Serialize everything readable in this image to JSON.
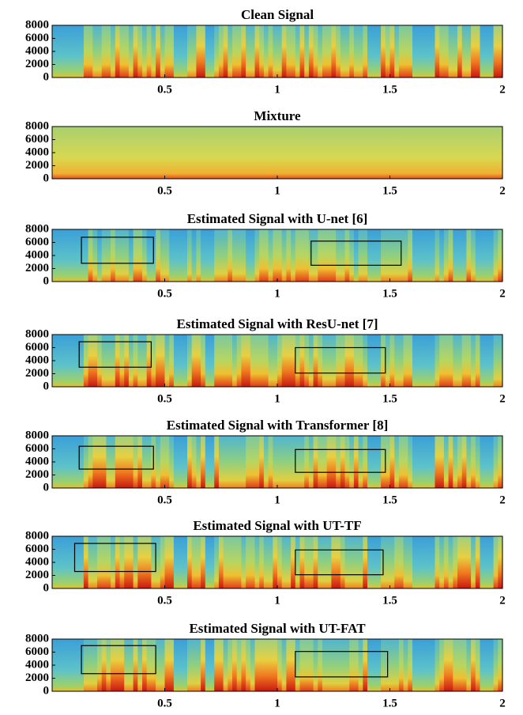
{
  "chart_data": [
    {
      "type": "spectrogram",
      "title": "Clean Signal",
      "xlim": [
        0,
        2
      ],
      "ylim": [
        0,
        8000
      ],
      "xticks": [
        0.5,
        1,
        1.5,
        2
      ],
      "yticks": [
        0,
        2000,
        4000,
        6000,
        8000
      ],
      "boxes": []
    },
    {
      "type": "spectrogram",
      "title": "Mixture",
      "xlim": [
        0,
        2
      ],
      "ylim": [
        0,
        8000
      ],
      "xticks": [
        0.5,
        1,
        1.5,
        2
      ],
      "yticks": [
        0,
        2000,
        4000,
        6000,
        8000
      ],
      "boxes": []
    },
    {
      "type": "spectrogram",
      "title": "Estimated Signal with U-net [6]",
      "xlim": [
        0,
        2
      ],
      "ylim": [
        0,
        8000
      ],
      "xticks": [
        0.5,
        1,
        1.5,
        2
      ],
      "yticks": [
        0,
        2000,
        4000,
        6000,
        8000
      ],
      "boxes": [
        {
          "x": [
            0.13,
            0.45
          ],
          "y": [
            2800,
            6800
          ]
        },
        {
          "x": [
            1.15,
            1.55
          ],
          "y": [
            2500,
            6200
          ]
        }
      ]
    },
    {
      "type": "spectrogram",
      "title": "Estimated Signal with ResU-net [7]",
      "xlim": [
        0,
        2
      ],
      "ylim": [
        0,
        8000
      ],
      "xticks": [
        0.5,
        1,
        1.5,
        2
      ],
      "yticks": [
        0,
        2000,
        4000,
        6000,
        8000
      ],
      "boxes": [
        {
          "x": [
            0.12,
            0.44
          ],
          "y": [
            3000,
            6900
          ]
        },
        {
          "x": [
            1.08,
            1.48
          ],
          "y": [
            2100,
            6000
          ]
        }
      ]
    },
    {
      "type": "spectrogram",
      "title": "Estimated Signal with Transformer [8]",
      "xlim": [
        0,
        2
      ],
      "ylim": [
        0,
        8000
      ],
      "xticks": [
        0.5,
        1,
        1.5,
        2
      ],
      "yticks": [
        0,
        2000,
        4000,
        6000,
        8000
      ],
      "boxes": [
        {
          "x": [
            0.12,
            0.45
          ],
          "y": [
            2900,
            6400
          ]
        },
        {
          "x": [
            1.08,
            1.48
          ],
          "y": [
            2400,
            5900
          ]
        }
      ]
    },
    {
      "type": "spectrogram",
      "title": "Estimated Signal with UT-TF",
      "xlim": [
        0,
        2
      ],
      "ylim": [
        0,
        8000
      ],
      "xticks": [
        0.5,
        1,
        1.5,
        2
      ],
      "yticks": [
        0,
        2000,
        4000,
        6000,
        8000
      ],
      "boxes": [
        {
          "x": [
            0.1,
            0.46
          ],
          "y": [
            2600,
            6900
          ]
        },
        {
          "x": [
            1.08,
            1.47
          ],
          "y": [
            2100,
            5900
          ]
        }
      ]
    },
    {
      "type": "spectrogram",
      "title": "Estimated Signal with UT-FAT",
      "xlim": [
        0,
        2
      ],
      "ylim": [
        0,
        8000
      ],
      "xticks": [
        0.5,
        1,
        1.5,
        2
      ],
      "yticks": [
        0,
        2000,
        4000,
        6000,
        8000
      ],
      "boxes": [
        {
          "x": [
            0.13,
            0.46
          ],
          "y": [
            2700,
            7000
          ]
        },
        {
          "x": [
            1.08,
            1.49
          ],
          "y": [
            2200,
            6100
          ]
        }
      ]
    }
  ]
}
